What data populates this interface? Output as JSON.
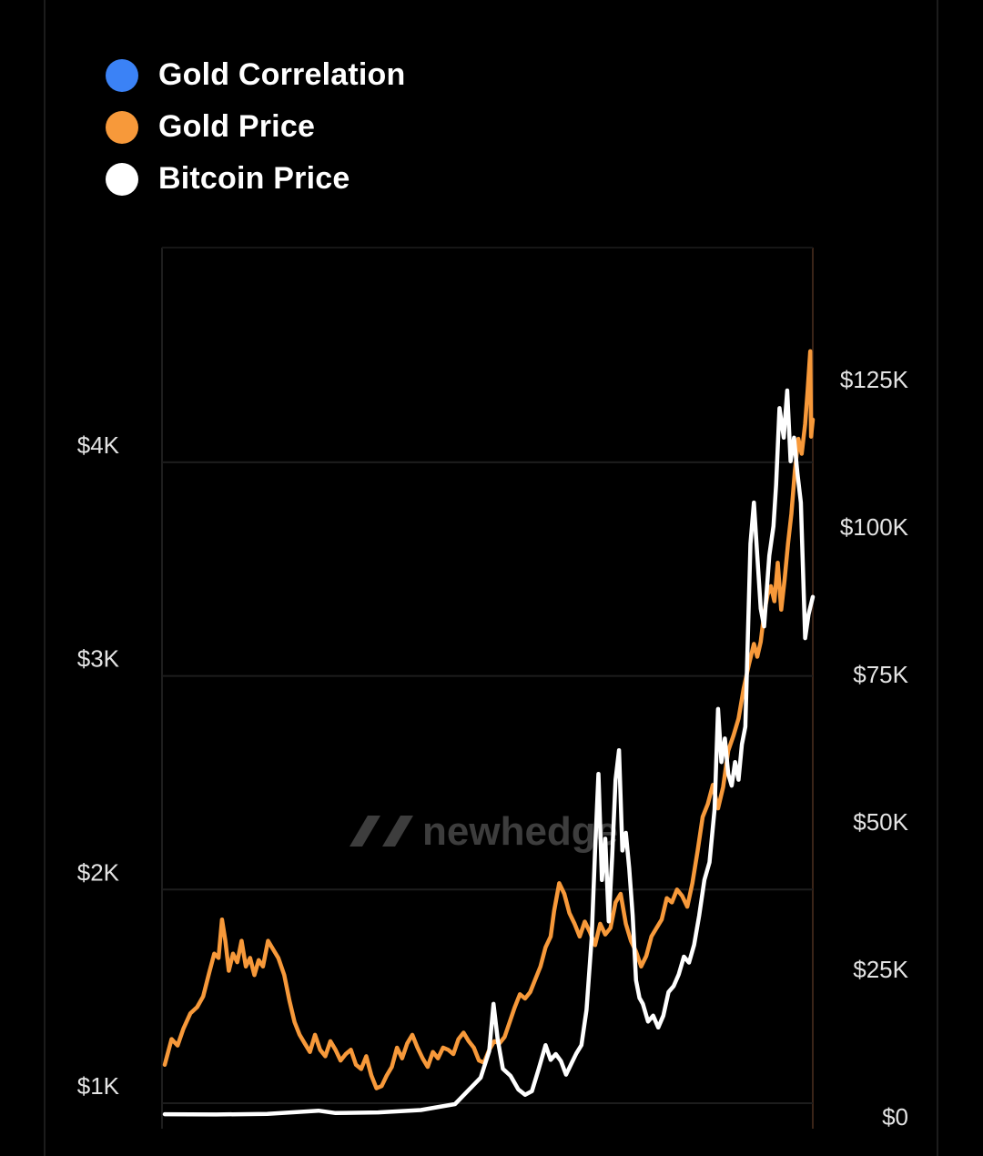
{
  "legend": {
    "items": [
      {
        "label": "Gold Correlation",
        "color": "#3b82f6"
      },
      {
        "label": "Gold Price",
        "color": "#f7993a"
      },
      {
        "label": "Bitcoin Price",
        "color": "#ffffff"
      }
    ]
  },
  "watermark": "newhedge",
  "chart_data": {
    "type": "line",
    "title": "",
    "grid": true,
    "legend_position": "top-left",
    "y_left": {
      "ticks": [
        "$1K",
        "$2K",
        "$3K",
        "$4K"
      ],
      "tick_values": [
        1000,
        2000,
        3000,
        4000
      ],
      "range": [
        950,
        4950
      ]
    },
    "y_right": {
      "ticks": [
        "$0",
        "$25K",
        "$50K",
        "$75K",
        "$100K",
        "$125K"
      ],
      "tick_values": [
        0,
        25000,
        50000,
        75000,
        100000,
        125000
      ],
      "range": [
        0,
        146000
      ]
    },
    "series": [
      {
        "name": "Gold Price",
        "axis": "left",
        "color": "#f7993a",
        "points": [
          [
            0.0,
            1180
          ],
          [
            0.008,
            1300
          ],
          [
            0.015,
            1270
          ],
          [
            0.022,
            1350
          ],
          [
            0.03,
            1420
          ],
          [
            0.038,
            1450
          ],
          [
            0.045,
            1500
          ],
          [
            0.052,
            1610
          ],
          [
            0.058,
            1700
          ],
          [
            0.063,
            1680
          ],
          [
            0.067,
            1860
          ],
          [
            0.071,
            1760
          ],
          [
            0.075,
            1620
          ],
          [
            0.08,
            1700
          ],
          [
            0.085,
            1660
          ],
          [
            0.09,
            1760
          ],
          [
            0.095,
            1640
          ],
          [
            0.1,
            1680
          ],
          [
            0.105,
            1600
          ],
          [
            0.11,
            1670
          ],
          [
            0.115,
            1640
          ],
          [
            0.121,
            1760
          ],
          [
            0.127,
            1720
          ],
          [
            0.133,
            1680
          ],
          [
            0.14,
            1600
          ],
          [
            0.146,
            1480
          ],
          [
            0.152,
            1380
          ],
          [
            0.158,
            1320
          ],
          [
            0.164,
            1280
          ],
          [
            0.17,
            1240
          ],
          [
            0.176,
            1320
          ],
          [
            0.182,
            1250
          ],
          [
            0.188,
            1220
          ],
          [
            0.194,
            1290
          ],
          [
            0.2,
            1250
          ],
          [
            0.206,
            1200
          ],
          [
            0.212,
            1230
          ],
          [
            0.218,
            1250
          ],
          [
            0.224,
            1180
          ],
          [
            0.23,
            1160
          ],
          [
            0.236,
            1220
          ],
          [
            0.242,
            1130
          ],
          [
            0.248,
            1070
          ],
          [
            0.254,
            1080
          ],
          [
            0.26,
            1130
          ],
          [
            0.266,
            1170
          ],
          [
            0.272,
            1260
          ],
          [
            0.278,
            1210
          ],
          [
            0.284,
            1280
          ],
          [
            0.29,
            1320
          ],
          [
            0.296,
            1260
          ],
          [
            0.302,
            1210
          ],
          [
            0.308,
            1170
          ],
          [
            0.314,
            1240
          ],
          [
            0.32,
            1210
          ],
          [
            0.326,
            1260
          ],
          [
            0.332,
            1250
          ],
          [
            0.338,
            1230
          ],
          [
            0.344,
            1300
          ],
          [
            0.35,
            1330
          ],
          [
            0.356,
            1290
          ],
          [
            0.362,
            1260
          ],
          [
            0.368,
            1200
          ],
          [
            0.374,
            1190
          ],
          [
            0.38,
            1250
          ],
          [
            0.386,
            1290
          ],
          [
            0.392,
            1280
          ],
          [
            0.398,
            1310
          ],
          [
            0.404,
            1380
          ],
          [
            0.41,
            1450
          ],
          [
            0.416,
            1510
          ],
          [
            0.422,
            1490
          ],
          [
            0.428,
            1520
          ],
          [
            0.434,
            1580
          ],
          [
            0.44,
            1640
          ],
          [
            0.446,
            1730
          ],
          [
            0.452,
            1780
          ],
          [
            0.456,
            1900
          ],
          [
            0.462,
            2030
          ],
          [
            0.468,
            1980
          ],
          [
            0.474,
            1890
          ],
          [
            0.48,
            1840
          ],
          [
            0.486,
            1780
          ],
          [
            0.492,
            1850
          ],
          [
            0.498,
            1800
          ],
          [
            0.504,
            1740
          ],
          [
            0.51,
            1840
          ],
          [
            0.516,
            1790
          ],
          [
            0.522,
            1820
          ],
          [
            0.528,
            1940
          ],
          [
            0.534,
            1980
          ],
          [
            0.54,
            1840
          ],
          [
            0.546,
            1760
          ],
          [
            0.552,
            1710
          ],
          [
            0.558,
            1640
          ],
          [
            0.564,
            1690
          ],
          [
            0.57,
            1780
          ],
          [
            0.576,
            1820
          ],
          [
            0.582,
            1860
          ],
          [
            0.588,
            1960
          ],
          [
            0.594,
            1940
          ],
          [
            0.6,
            2000
          ],
          [
            0.606,
            1970
          ],
          [
            0.612,
            1920
          ],
          [
            0.618,
            2030
          ],
          [
            0.624,
            2180
          ],
          [
            0.63,
            2340
          ],
          [
            0.636,
            2400
          ],
          [
            0.642,
            2490
          ],
          [
            0.648,
            2380
          ],
          [
            0.654,
            2480
          ],
          [
            0.66,
            2650
          ],
          [
            0.666,
            2720
          ],
          [
            0.672,
            2800
          ],
          [
            0.678,
            2940
          ],
          [
            0.684,
            3050
          ],
          [
            0.69,
            3150
          ],
          [
            0.694,
            3090
          ],
          [
            0.698,
            3160
          ],
          [
            0.702,
            3290
          ],
          [
            0.706,
            3380
          ],
          [
            0.71,
            3420
          ],
          [
            0.714,
            3350
          ],
          [
            0.718,
            3530
          ],
          [
            0.722,
            3310
          ],
          [
            0.726,
            3450
          ],
          [
            0.73,
            3620
          ],
          [
            0.734,
            3760
          ],
          [
            0.738,
            3960
          ],
          [
            0.742,
            4110
          ],
          [
            0.746,
            4040
          ],
          [
            0.75,
            4180
          ],
          [
            0.753,
            4340
          ],
          [
            0.756,
            4520
          ],
          [
            0.757,
            4120
          ],
          [
            0.759,
            4200
          ]
        ]
      },
      {
        "name": "Bitcoin Price",
        "axis": "right",
        "color": "#ffffff",
        "points": [
          [
            0.0,
            300
          ],
          [
            0.06,
            250
          ],
          [
            0.12,
            350
          ],
          [
            0.18,
            900
          ],
          [
            0.2,
            500
          ],
          [
            0.25,
            600
          ],
          [
            0.3,
            1000
          ],
          [
            0.34,
            2000
          ],
          [
            0.37,
            6500
          ],
          [
            0.38,
            11000
          ],
          [
            0.385,
            19000
          ],
          [
            0.39,
            13000
          ],
          [
            0.396,
            8000
          ],
          [
            0.405,
            6800
          ],
          [
            0.414,
            4500
          ],
          [
            0.422,
            3600
          ],
          [
            0.43,
            4200
          ],
          [
            0.438,
            8000
          ],
          [
            0.446,
            12000
          ],
          [
            0.452,
            9500
          ],
          [
            0.458,
            10500
          ],
          [
            0.464,
            9300
          ],
          [
            0.47,
            7000
          ],
          [
            0.476,
            8800
          ],
          [
            0.482,
            10600
          ],
          [
            0.488,
            12000
          ],
          [
            0.494,
            18000
          ],
          [
            0.5,
            30000
          ],
          [
            0.504,
            45000
          ],
          [
            0.508,
            58000
          ],
          [
            0.512,
            40000
          ],
          [
            0.516,
            47000
          ],
          [
            0.52,
            33000
          ],
          [
            0.524,
            44000
          ],
          [
            0.528,
            57000
          ],
          [
            0.532,
            62000
          ],
          [
            0.536,
            45000
          ],
          [
            0.54,
            48000
          ],
          [
            0.544,
            42000
          ],
          [
            0.548,
            34000
          ],
          [
            0.552,
            23000
          ],
          [
            0.556,
            20000
          ],
          [
            0.56,
            19000
          ],
          [
            0.566,
            16000
          ],
          [
            0.572,
            17000
          ],
          [
            0.578,
            15000
          ],
          [
            0.584,
            17000
          ],
          [
            0.59,
            21000
          ],
          [
            0.596,
            22000
          ],
          [
            0.602,
            24000
          ],
          [
            0.608,
            27000
          ],
          [
            0.614,
            26000
          ],
          [
            0.62,
            29000
          ],
          [
            0.626,
            34000
          ],
          [
            0.632,
            40000
          ],
          [
            0.638,
            43000
          ],
          [
            0.644,
            52000
          ],
          [
            0.648,
            69000
          ],
          [
            0.652,
            60000
          ],
          [
            0.656,
            64000
          ],
          [
            0.66,
            58000
          ],
          [
            0.664,
            56000
          ],
          [
            0.668,
            60000
          ],
          [
            0.672,
            57000
          ],
          [
            0.676,
            63000
          ],
          [
            0.68,
            66000
          ],
          [
            0.686,
            97000
          ],
          [
            0.69,
            104000
          ],
          [
            0.694,
            95000
          ],
          [
            0.698,
            86000
          ],
          [
            0.702,
            83000
          ],
          [
            0.708,
            95000
          ],
          [
            0.713,
            100000
          ],
          [
            0.716,
            107000
          ],
          [
            0.72,
            120000
          ],
          [
            0.725,
            115000
          ],
          [
            0.729,
            123000
          ],
          [
            0.733,
            111000
          ],
          [
            0.737,
            115000
          ],
          [
            0.741,
            109000
          ],
          [
            0.745,
            104000
          ],
          [
            0.75,
            81000
          ],
          [
            0.754,
            85000
          ],
          [
            0.759,
            88000
          ]
        ]
      }
    ]
  }
}
